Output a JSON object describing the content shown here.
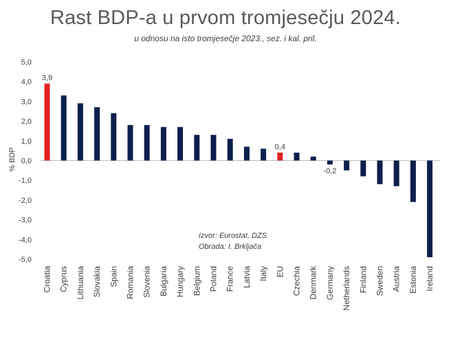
{
  "chart_data": {
    "type": "bar",
    "title": "Rast BDP-a u prvom tromjesečju 2024.",
    "subtitle": "u odnosu na isto tromjesečje 2023., sez. i kal. pril.",
    "ylabel": "% BDP",
    "xlabel": "",
    "ylim": [
      -5.0,
      5.0
    ],
    "yticks": [
      "5,0",
      "4,0",
      "3,0",
      "2,0",
      "1,0",
      "0,0",
      "-1,0",
      "-2,0",
      "-3,0",
      "-4,0",
      "-5,0"
    ],
    "ytick_values": [
      5,
      4,
      3,
      2,
      1,
      0,
      -1,
      -2,
      -3,
      -4,
      -5
    ],
    "grid": false,
    "categories": [
      "Croatia",
      "Cyprus",
      "Lithuania",
      "Slovakia",
      "Spain",
      "Romania",
      "Slovenia",
      "Bulgaria",
      "Hungary",
      "Belgium",
      "Poland",
      "France",
      "Latvia",
      "Italy",
      "EU",
      "Czechia",
      "Denmark",
      "Germany",
      "Netherlands",
      "Finland",
      "Sweden",
      "Austria",
      "Estonia",
      "Ireland"
    ],
    "values": [
      3.9,
      3.3,
      2.9,
      2.7,
      2.4,
      1.8,
      1.8,
      1.7,
      1.7,
      1.3,
      1.3,
      1.1,
      0.7,
      0.6,
      0.4,
      0.4,
      0.2,
      -0.2,
      -0.5,
      -0.8,
      -1.2,
      -1.3,
      -2.1,
      -4.9
    ],
    "highlight": [
      "Croatia",
      "EU"
    ],
    "data_labels": [
      {
        "category": "Croatia",
        "text": "3,9"
      },
      {
        "category": "EU",
        "text": "0,4"
      },
      {
        "category": "Germany",
        "text": "-0,2"
      }
    ],
    "colors": {
      "default": "#0d1f4d",
      "highlight": "#e02020"
    }
  },
  "source_note": {
    "line1": "Izvor: Eurostat, DZS",
    "line2": "Obrada: I. Brkljača"
  }
}
